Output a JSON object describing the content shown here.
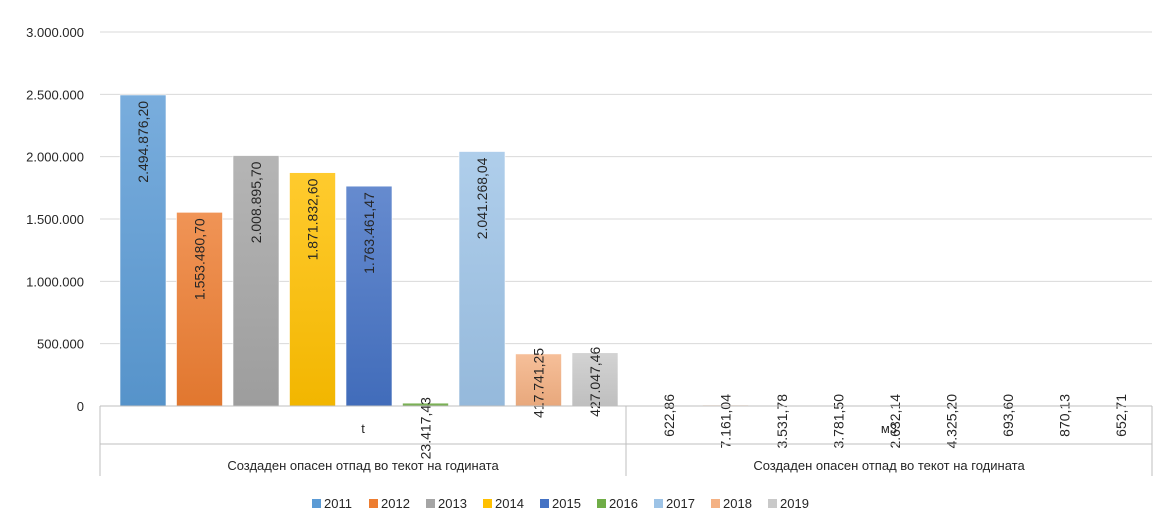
{
  "chart_data": {
    "type": "bar",
    "y_ticks": [
      "0",
      "500.000",
      "1.000.000",
      "1.500.000",
      "2.000.000",
      "2.500.000",
      "3.000.000"
    ],
    "ylim": [
      0,
      3000000
    ],
    "grid": true,
    "legend_position": "bottom",
    "groups": [
      {
        "unit": "t",
        "category": "Создаден опасен отпад во текот на годината"
      },
      {
        "unit": "м3",
        "category": "Создаден опасен отпад во текот на годината"
      }
    ],
    "series": [
      {
        "name": "2011",
        "color": "#5b9bd5",
        "values": [
          2494876.2,
          622.86
        ],
        "labels": [
          "2.494.876,20",
          "622,86"
        ]
      },
      {
        "name": "2012",
        "color": "#ed7d31",
        "values": [
          1553480.7,
          7161.04
        ],
        "labels": [
          "1.553.480,70",
          "7.161,04"
        ]
      },
      {
        "name": "2013",
        "color": "#a5a5a5",
        "values": [
          2008895.7,
          3531.78
        ],
        "labels": [
          "2.008.895,70",
          "3.531,78"
        ]
      },
      {
        "name": "2014",
        "color": "#ffc000",
        "values": [
          1871832.6,
          3781.5
        ],
        "labels": [
          "1.871.832,60",
          "3.781,50"
        ]
      },
      {
        "name": "2015",
        "color": "#4472c4",
        "values": [
          1763461.47,
          2632.14
        ],
        "labels": [
          "1.763.461,47",
          "2.632,14"
        ]
      },
      {
        "name": "2016",
        "color": "#70ad47",
        "values": [
          23417.43,
          4325.2
        ],
        "labels": [
          "23.417,43",
          "4.325,20"
        ]
      },
      {
        "name": "2017",
        "color": "#9dc3e6",
        "values": [
          2041268.04,
          693.6
        ],
        "labels": [
          "2.041.268,04",
          "693,60"
        ]
      },
      {
        "name": "2018",
        "color": "#f4b183",
        "values": [
          417741.25,
          870.13
        ],
        "labels": [
          "417.741,25",
          "870,13"
        ]
      },
      {
        "name": "2019",
        "color": "#c9c9c9",
        "values": [
          427047.46,
          652.71
        ],
        "labels": [
          "427.047,46",
          "652,71"
        ]
      }
    ]
  }
}
